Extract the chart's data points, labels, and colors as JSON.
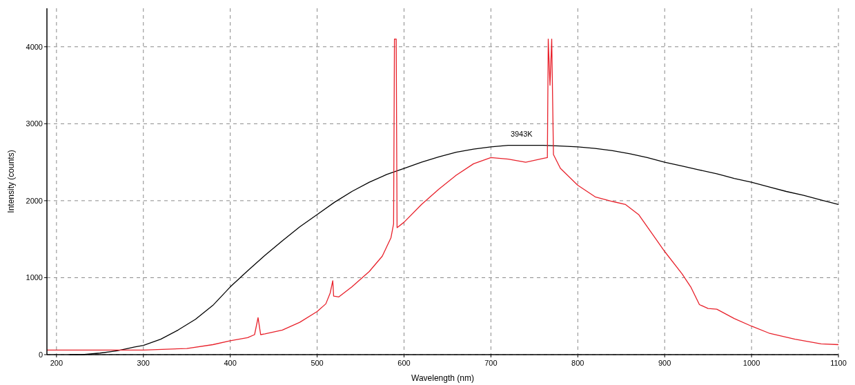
{
  "chart_data": {
    "type": "line",
    "xlabel": "Wavelength (nm)",
    "ylabel": "Intensity (counts)",
    "xlim": [
      189,
      1100
    ],
    "ylim": [
      0,
      4500
    ],
    "xticks": [
      200,
      300,
      400,
      500,
      600,
      700,
      800,
      900,
      1000,
      1100
    ],
    "yticks": [
      0,
      1000,
      2000,
      3000,
      4000
    ],
    "grid": true,
    "annotations": [
      "3943K"
    ],
    "series": [
      {
        "color": "#000000",
        "x": [
          215,
          230,
          250,
          270,
          290,
          300,
          320,
          340,
          360,
          380,
          400,
          420,
          440,
          460,
          480,
          500,
          520,
          540,
          560,
          580,
          600,
          620,
          640,
          660,
          680,
          700,
          720,
          740,
          760,
          780,
          800,
          820,
          840,
          860,
          880,
          900,
          920,
          940,
          960,
          980,
          1000,
          1020,
          1040,
          1060,
          1080,
          1100
        ],
        "values": [
          0,
          0,
          20,
          50,
          100,
          120,
          200,
          320,
          460,
          640,
          880,
          1090,
          1290,
          1480,
          1660,
          1820,
          1980,
          2120,
          2240,
          2340,
          2420,
          2500,
          2570,
          2630,
          2670,
          2700,
          2720,
          2720,
          2720,
          2710,
          2700,
          2680,
          2650,
          2610,
          2560,
          2500,
          2450,
          2400,
          2350,
          2290,
          2240,
          2180,
          2120,
          2070,
          2010,
          1950
        ]
      },
      {
        "color": "#e8202a",
        "x": [
          189,
          250,
          300,
          350,
          380,
          400,
          420,
          428,
          432,
          435,
          440,
          460,
          480,
          500,
          510,
          515,
          518,
          519,
          525,
          540,
          560,
          575,
          585,
          588,
          589,
          591,
          592,
          600,
          620,
          640,
          660,
          680,
          700,
          720,
          740,
          760,
          765,
          766,
          768,
          770,
          772,
          780,
          800,
          820,
          840,
          855,
          870,
          890,
          900,
          920,
          930,
          940,
          950,
          960,
          980,
          1000,
          1020,
          1050,
          1080,
          1100
        ],
        "values": [
          60,
          60,
          60,
          80,
          130,
          180,
          220,
          260,
          480,
          260,
          270,
          320,
          420,
          560,
          660,
          800,
          960,
          760,
          750,
          880,
          1080,
          1280,
          1520,
          1700,
          4100,
          4100,
          1650,
          1720,
          1950,
          2150,
          2330,
          2480,
          2560,
          2540,
          2500,
          2550,
          2560,
          4100,
          3500,
          4100,
          2600,
          2420,
          2200,
          2050,
          1990,
          1950,
          1820,
          1500,
          1340,
          1050,
          880,
          650,
          600,
          590,
          470,
          370,
          280,
          200,
          140,
          130
        ]
      }
    ]
  }
}
